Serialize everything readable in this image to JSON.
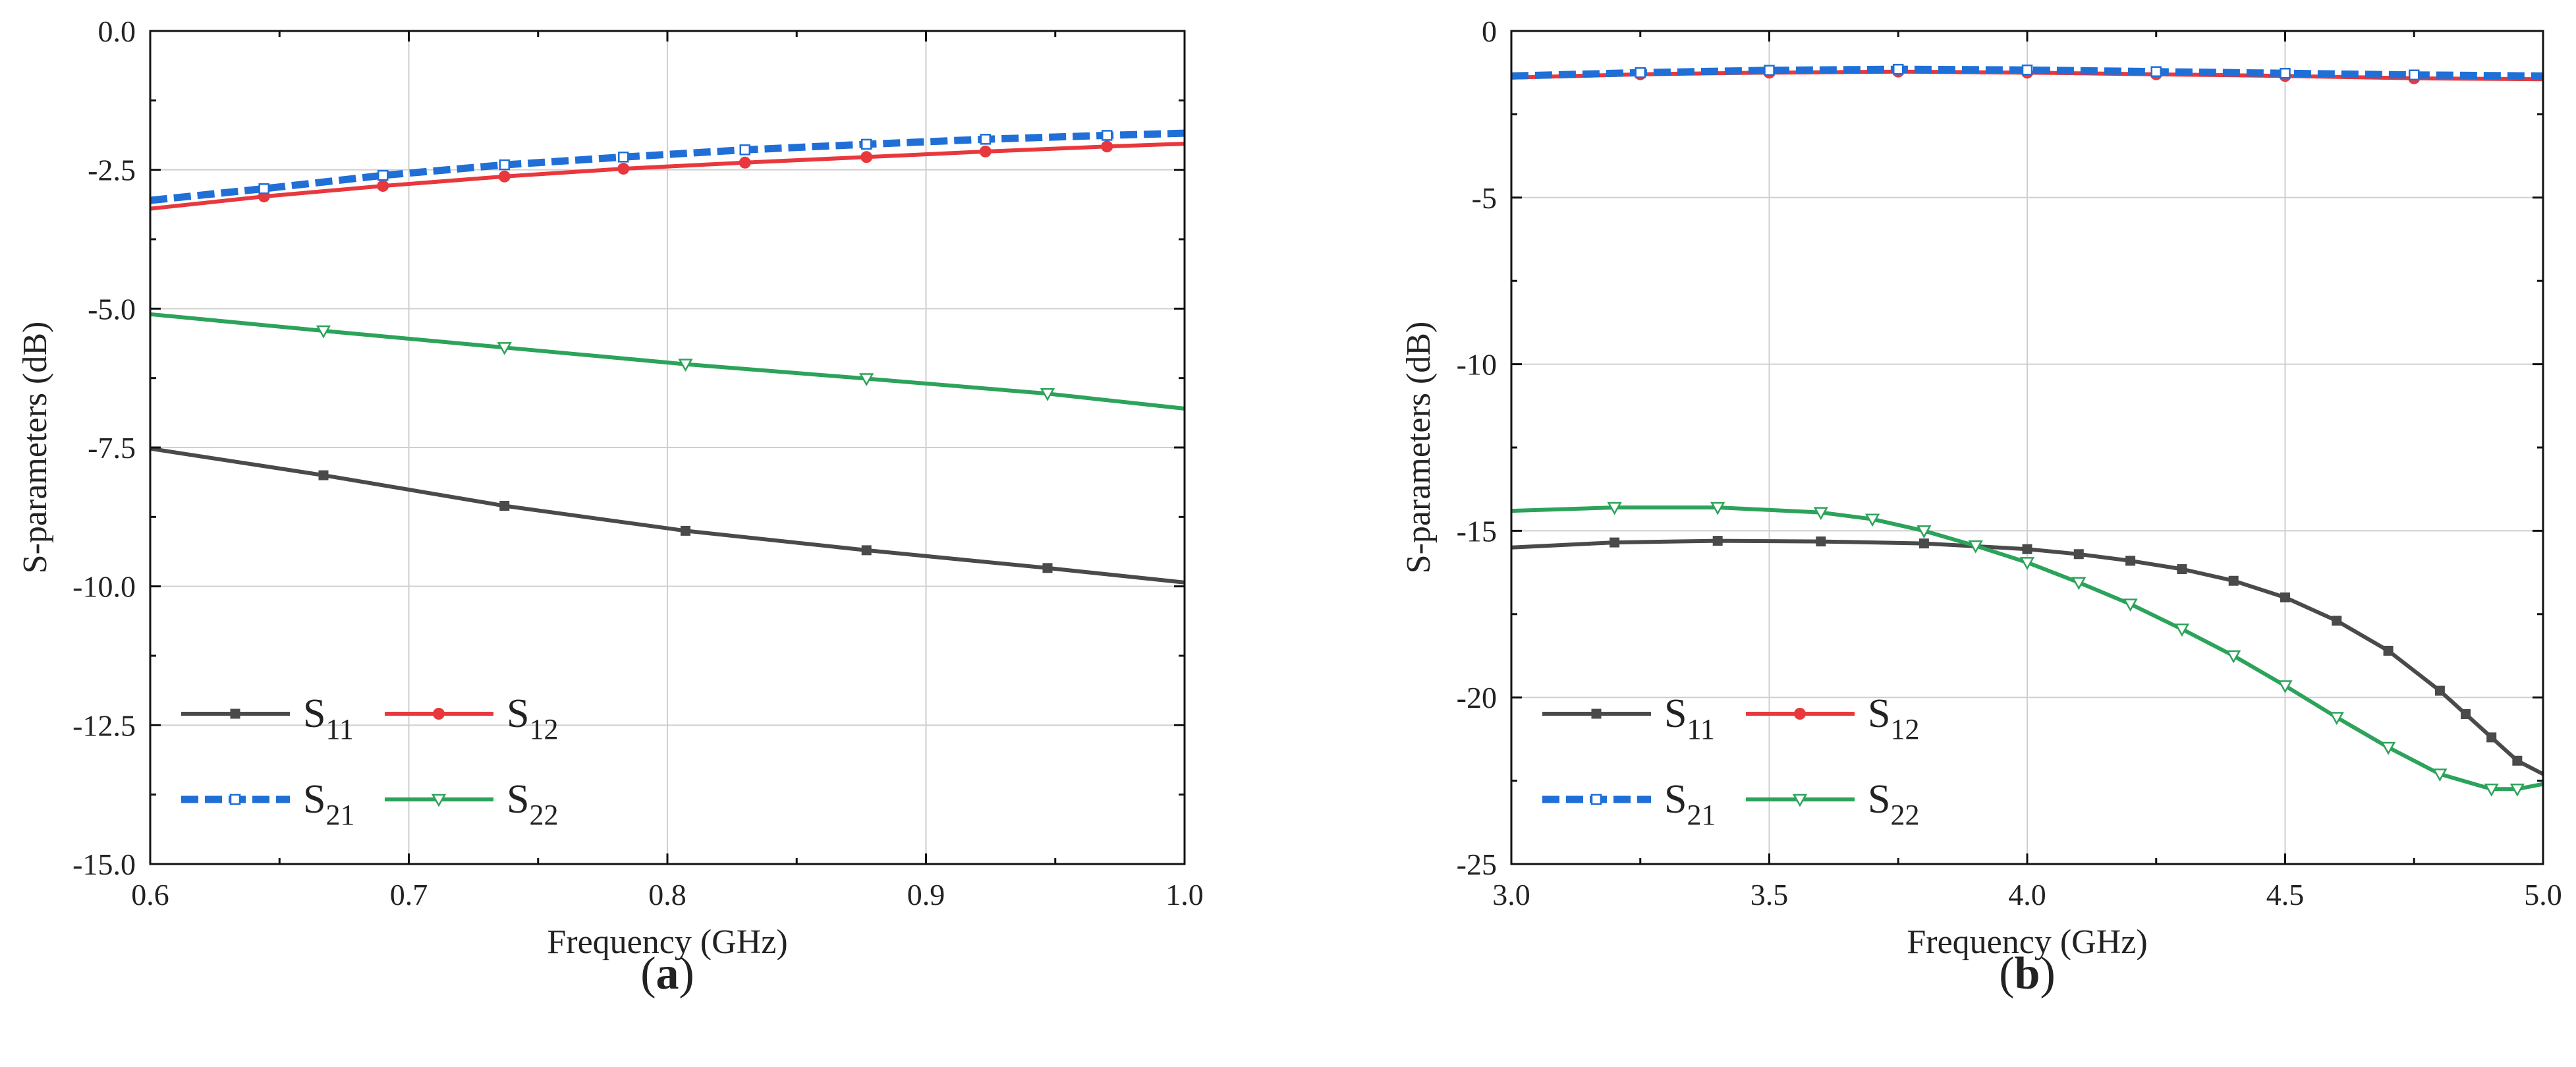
{
  "colors": {
    "S11": "#4a4a4a",
    "S12": "#e8383d",
    "S21": "#1f6fd6",
    "S22": "#2ca35a",
    "grid": "#cfcfcf",
    "axis": "#111111"
  },
  "chart_data": [
    {
      "panel_label": "a",
      "type": "line",
      "xlabel": "Frequency (GHz)",
      "ylabel": "S-parameters (dB)",
      "xlim": [
        0.6,
        1.0
      ],
      "ylim": [
        -15.0,
        0.0
      ],
      "x_ticks": [
        "0.6",
        "0.7",
        "0.8",
        "0.9",
        "1.0"
      ],
      "y_ticks": [
        "0.0",
        "-2.5",
        "-5.0",
        "-7.5",
        "-10.0",
        "-12.5",
        "-15.0"
      ],
      "grid": true,
      "legend_position": "bottom-left",
      "legend": [
        {
          "key": "S11",
          "base": "S",
          "sub": "11"
        },
        {
          "key": "S12",
          "base": "S",
          "sub": "12"
        },
        {
          "key": "S21",
          "base": "S",
          "sub": "21"
        },
        {
          "key": "S22",
          "base": "S",
          "sub": "22"
        }
      ],
      "series": [
        {
          "key": "S11",
          "marker": "square",
          "dash": false,
          "x": [
            0.6,
            0.667,
            0.737,
            0.807,
            0.877,
            0.947,
            1.0
          ],
          "y": [
            -7.52,
            -8.0,
            -8.55,
            -9.0,
            -9.35,
            -9.67,
            -9.93
          ]
        },
        {
          "key": "S12",
          "marker": "circle",
          "dash": false,
          "x": [
            0.6,
            0.644,
            0.69,
            0.737,
            0.783,
            0.83,
            0.877,
            0.923,
            0.97,
            1.0
          ],
          "y": [
            -3.2,
            -2.98,
            -2.79,
            -2.62,
            -2.48,
            -2.37,
            -2.27,
            -2.17,
            -2.08,
            -2.03
          ]
        },
        {
          "key": "S21",
          "marker": "open-square",
          "dash": true,
          "x": [
            0.6,
            0.644,
            0.69,
            0.737,
            0.783,
            0.83,
            0.877,
            0.923,
            0.97,
            1.0
          ],
          "y": [
            -3.05,
            -2.84,
            -2.6,
            -2.41,
            -2.27,
            -2.14,
            -2.04,
            -1.95,
            -1.88,
            -1.84
          ]
        },
        {
          "key": "S22",
          "marker": "open-triangle-down",
          "dash": false,
          "x": [
            0.6,
            0.667,
            0.737,
            0.807,
            0.877,
            0.947,
            1.0
          ],
          "y": [
            -5.1,
            -5.4,
            -5.7,
            -6.0,
            -6.26,
            -6.53,
            -6.8
          ]
        }
      ]
    },
    {
      "panel_label": "b",
      "type": "line",
      "xlabel": "Frequency (GHz)",
      "ylabel": "S-parameters (dB)",
      "xlim": [
        3.0,
        5.0
      ],
      "ylim": [
        -25,
        0
      ],
      "x_ticks": [
        "3.0",
        "3.5",
        "4.0",
        "4.5",
        "5.0"
      ],
      "y_ticks": [
        "0",
        "-5",
        "-10",
        "-15",
        "-20",
        "-25"
      ],
      "grid": true,
      "legend_position": "bottom-left",
      "legend": [
        {
          "key": "S11",
          "base": "S",
          "sub": "11"
        },
        {
          "key": "S12",
          "base": "S",
          "sub": "12"
        },
        {
          "key": "S21",
          "base": "S",
          "sub": "21"
        },
        {
          "key": "S22",
          "base": "S",
          "sub": "22"
        }
      ],
      "series": [
        {
          "key": "S11",
          "marker": "square",
          "dash": false,
          "x": [
            3.0,
            3.2,
            3.4,
            3.6,
            3.8,
            4.0,
            4.1,
            4.2,
            4.3,
            4.4,
            4.5,
            4.6,
            4.7,
            4.8,
            4.85,
            4.9,
            4.95,
            5.0
          ],
          "y": [
            -15.5,
            -15.35,
            -15.3,
            -15.32,
            -15.38,
            -15.55,
            -15.7,
            -15.9,
            -16.15,
            -16.5,
            -17.0,
            -17.7,
            -18.6,
            -19.8,
            -20.5,
            -21.2,
            -21.9,
            -22.3
          ]
        },
        {
          "key": "S12",
          "marker": "circle",
          "dash": false,
          "x": [
            3.0,
            3.25,
            3.5,
            3.75,
            4.0,
            4.25,
            4.5,
            4.75,
            5.0
          ],
          "y": [
            -1.4,
            -1.3,
            -1.25,
            -1.22,
            -1.25,
            -1.3,
            -1.35,
            -1.42,
            -1.45
          ]
        },
        {
          "key": "S21",
          "marker": "open-square",
          "dash": true,
          "x": [
            3.0,
            3.25,
            3.5,
            3.75,
            4.0,
            4.25,
            4.5,
            4.75,
            5.0
          ],
          "y": [
            -1.35,
            -1.25,
            -1.18,
            -1.15,
            -1.17,
            -1.22,
            -1.27,
            -1.32,
            -1.35
          ]
        },
        {
          "key": "S22",
          "marker": "open-triangle-down",
          "dash": false,
          "x": [
            3.0,
            3.2,
            3.4,
            3.6,
            3.7,
            3.8,
            3.9,
            4.0,
            4.1,
            4.2,
            4.3,
            4.4,
            4.5,
            4.6,
            4.7,
            4.8,
            4.9,
            4.95,
            5.0
          ],
          "y": [
            -14.4,
            -14.3,
            -14.3,
            -14.45,
            -14.65,
            -15.0,
            -15.45,
            -15.95,
            -16.55,
            -17.2,
            -17.95,
            -18.75,
            -19.65,
            -20.6,
            -21.5,
            -22.3,
            -22.75,
            -22.75,
            -22.6
          ]
        }
      ]
    }
  ]
}
